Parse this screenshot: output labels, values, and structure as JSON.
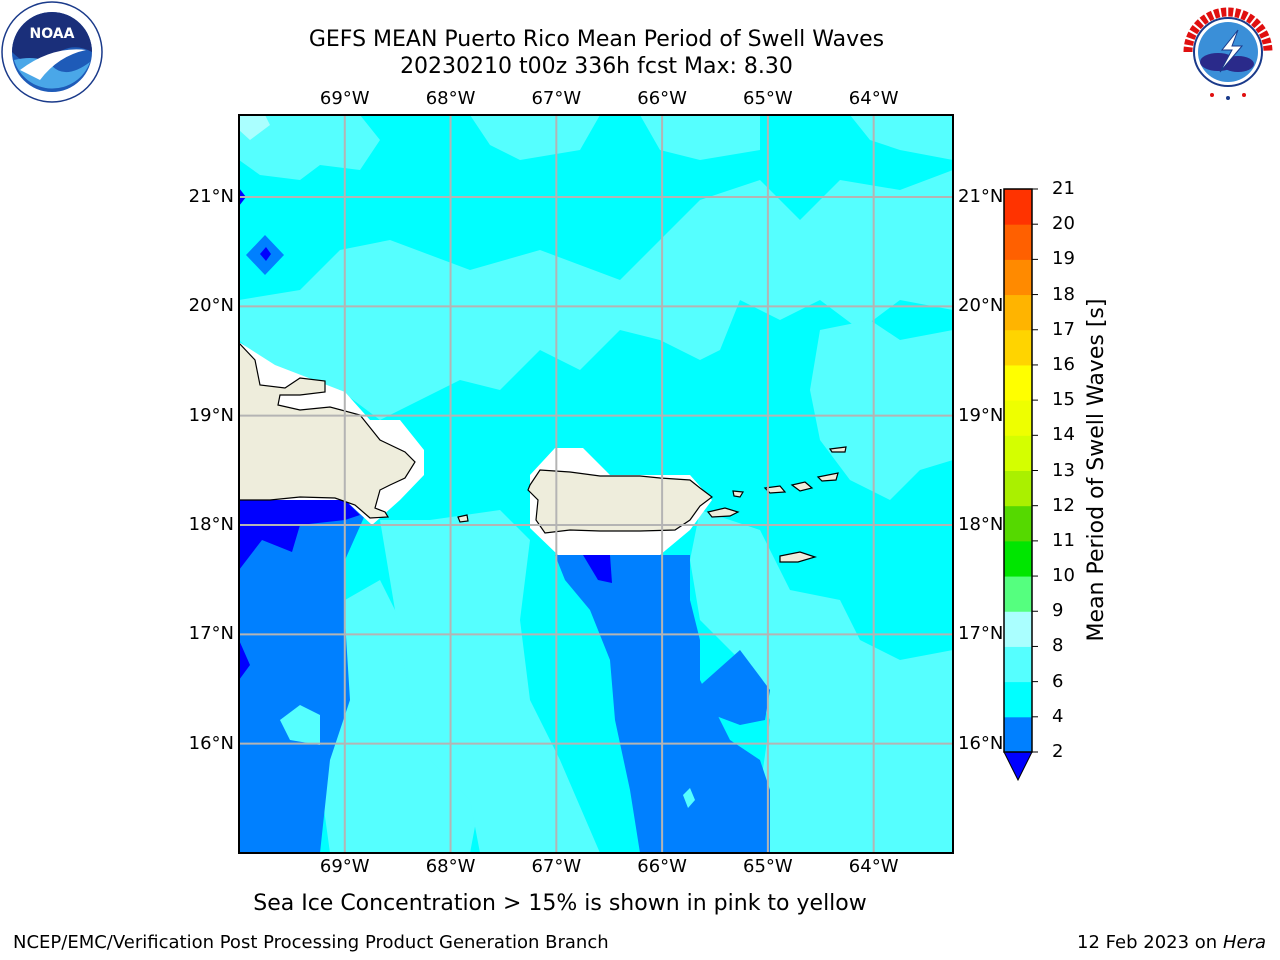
{
  "header": {
    "title": "GEFS MEAN Puerto Rico Mean Period of Swell Waves",
    "subtitle": "20230210 t00z 336h fcst   Max: 8.30"
  },
  "logos": {
    "noaa": {
      "text": "NOAA",
      "ring_text": "NATIONAL OCEANIC AND ATMOSPHERIC ADMINISTRATION · U.S. DEPARTMENT OF COMMERCE"
    },
    "nws": {
      "ring_text": "NATIONAL WEATHER SERVICE"
    }
  },
  "map": {
    "lon_labels": [
      "69°W",
      "68°W",
      "67°W",
      "66°W",
      "65°W",
      "64°W"
    ],
    "lat_labels": [
      "21°N",
      "20°N",
      "19°N",
      "18°N",
      "17°N",
      "16°N"
    ],
    "lon_values": [
      -69,
      -68,
      -67,
      -66,
      -65,
      -64
    ],
    "lat_values": [
      21,
      20,
      19,
      18,
      17,
      16
    ],
    "extent": {
      "lon_min": -70,
      "lon_max": -63.25,
      "lat_min": 15,
      "lat_max": 21.75
    },
    "land_color": "#eeeddc",
    "grid": true
  },
  "colorbar": {
    "label": "Mean Period of Swell Waves [s]",
    "ticks": [
      "21",
      "20",
      "19",
      "18",
      "17",
      "16",
      "15",
      "14",
      "13",
      "12",
      "11",
      "10",
      "9",
      "8",
      "6",
      "4",
      "2"
    ],
    "levels": [
      2,
      4,
      6,
      8,
      9,
      10,
      11,
      12,
      13,
      14,
      15,
      16,
      17,
      18,
      19,
      20,
      21
    ],
    "colors": [
      "#0080ff",
      "#00ffff",
      "#55ffff",
      "#aaffff",
      "#55ff7f",
      "#00e600",
      "#55d900",
      "#aaf000",
      "#d4ff00",
      "#eeff00",
      "#ffff00",
      "#ffd400",
      "#ffb400",
      "#ff8a00",
      "#ff6000",
      "#ff3300"
    ],
    "under_color": "#0000ff",
    "top_color": "#ff0000"
  },
  "footer": {
    "note": "Sea Ice Concentration > 15% is shown in pink to yellow",
    "credit": "NCEP/EMC/Verification Post Processing Product Generation Branch",
    "date_prefix": "12 Feb 2023 on",
    "date_host": "Hera"
  }
}
